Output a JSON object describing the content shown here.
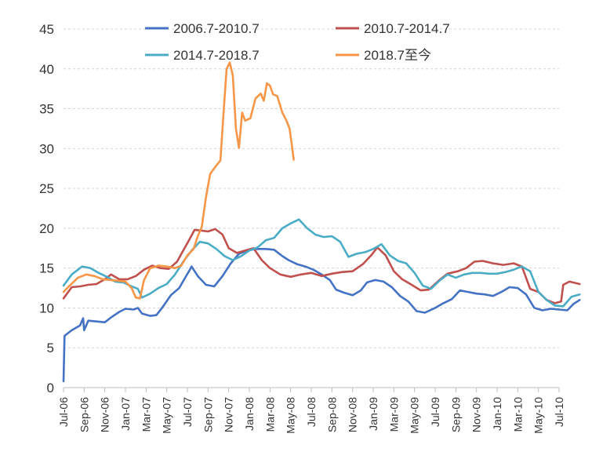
{
  "chart_data": {
    "type": "line",
    "title": "",
    "xlabel": "",
    "ylabel": "",
    "ylim": [
      0,
      45
    ],
    "yticks": [
      "0",
      "5",
      "10",
      "15",
      "20",
      "25",
      "30",
      "35",
      "40",
      "45"
    ],
    "x_ticks": [
      "Jul-06",
      "Sep-06",
      "Nov-06",
      "Jan-07",
      "Mar-07",
      "May-07",
      "Jul-07",
      "Sep-07",
      "Nov-07",
      "Jan-08",
      "Mar-08",
      "May-08",
      "Jul-08",
      "Sep-08",
      "Nov-08",
      "Jan-09",
      "Mar-09",
      "May-09",
      "Jul-09",
      "Sep-09",
      "Nov-09",
      "Jan-10",
      "Mar-10",
      "May-10",
      "Jul-10"
    ],
    "grid": "horizontal dashed",
    "legend_position": "top",
    "series": [
      {
        "name": "2006.7-2010.7",
        "color": "#4472C4",
        "points": [
          [
            0,
            0.8
          ],
          [
            0.05,
            6.5
          ],
          [
            0.4,
            7.2
          ],
          [
            0.8,
            7.8
          ],
          [
            0.95,
            8.7
          ],
          [
            1.0,
            7.2
          ],
          [
            1.2,
            8.4
          ],
          [
            1.6,
            8.3
          ],
          [
            2.0,
            8.2
          ],
          [
            2.3,
            8.8
          ],
          [
            2.7,
            9.5
          ],
          [
            3.0,
            9.9
          ],
          [
            3.4,
            9.8
          ],
          [
            3.6,
            10.0
          ],
          [
            3.8,
            9.3
          ],
          [
            4.2,
            9.0
          ],
          [
            4.5,
            9.1
          ],
          [
            4.8,
            10.1
          ],
          [
            5.2,
            11.6
          ],
          [
            5.6,
            12.5
          ],
          [
            5.85,
            13.6
          ],
          [
            6.1,
            14.7
          ],
          [
            6.2,
            15.2
          ],
          [
            6.5,
            14.0
          ],
          [
            6.9,
            12.9
          ],
          [
            7.3,
            12.7
          ],
          [
            7.7,
            14.0
          ],
          [
            8.1,
            15.6
          ],
          [
            8.5,
            16.8
          ],
          [
            8.9,
            17.2
          ],
          [
            9.3,
            17.4
          ],
          [
            9.8,
            17.4
          ],
          [
            10.2,
            17.3
          ],
          [
            10.6,
            16.5
          ],
          [
            10.9,
            16.0
          ],
          [
            11.3,
            15.5
          ],
          [
            11.7,
            15.2
          ],
          [
            12.1,
            14.8
          ],
          [
            12.5,
            14.2
          ],
          [
            12.9,
            13.5
          ],
          [
            13.2,
            12.3
          ],
          [
            13.6,
            11.9
          ],
          [
            14.0,
            11.6
          ],
          [
            14.4,
            12.2
          ],
          [
            14.7,
            13.2
          ],
          [
            15.1,
            13.5
          ],
          [
            15.5,
            13.3
          ],
          [
            15.9,
            12.6
          ],
          [
            16.3,
            11.5
          ],
          [
            16.7,
            10.8
          ],
          [
            17.1,
            9.6
          ],
          [
            17.5,
            9.4
          ],
          [
            18.0,
            10.0
          ],
          [
            18.4,
            10.6
          ],
          [
            18.8,
            11.1
          ],
          [
            19.2,
            12.2
          ],
          [
            19.6,
            12.0
          ],
          [
            20.0,
            11.8
          ],
          [
            20.4,
            11.7
          ],
          [
            20.8,
            11.5
          ],
          [
            21.2,
            12.0
          ],
          [
            21.6,
            12.6
          ],
          [
            22.0,
            12.5
          ],
          [
            22.4,
            11.7
          ],
          [
            22.8,
            10.0
          ],
          [
            23.2,
            9.7
          ],
          [
            23.6,
            9.9
          ],
          [
            24.0,
            9.8
          ],
          [
            24.4,
            9.7
          ],
          [
            24.7,
            10.5
          ],
          [
            25.0,
            11.0
          ]
        ]
      },
      {
        "name": "2010.7-2014.7",
        "color": "#C0504D",
        "points": [
          [
            0,
            11.2
          ],
          [
            0.4,
            12.6
          ],
          [
            0.8,
            12.7
          ],
          [
            1.2,
            12.9
          ],
          [
            1.6,
            13.0
          ],
          [
            2.0,
            13.6
          ],
          [
            2.3,
            14.2
          ],
          [
            2.7,
            13.6
          ],
          [
            3.1,
            13.6
          ],
          [
            3.5,
            14.0
          ],
          [
            3.9,
            14.8
          ],
          [
            4.3,
            15.3
          ],
          [
            4.7,
            15.0
          ],
          [
            5.1,
            14.9
          ],
          [
            5.5,
            15.8
          ],
          [
            5.8,
            17.2
          ],
          [
            6.1,
            18.6
          ],
          [
            6.35,
            19.8
          ],
          [
            6.7,
            19.7
          ],
          [
            7.0,
            19.6
          ],
          [
            7.35,
            19.9
          ],
          [
            7.7,
            19.2
          ],
          [
            8.0,
            17.5
          ],
          [
            8.4,
            16.9
          ],
          [
            8.8,
            17.2
          ],
          [
            9.2,
            17.5
          ],
          [
            9.6,
            16.0
          ],
          [
            10.0,
            15.0
          ],
          [
            10.5,
            14.2
          ],
          [
            11.0,
            13.9
          ],
          [
            11.5,
            14.2
          ],
          [
            12.0,
            14.4
          ],
          [
            12.5,
            14.0
          ],
          [
            13.0,
            14.3
          ],
          [
            13.5,
            14.5
          ],
          [
            14.0,
            14.6
          ],
          [
            14.5,
            15.5
          ],
          [
            14.9,
            16.6
          ],
          [
            15.2,
            17.6
          ],
          [
            15.6,
            16.6
          ],
          [
            16.0,
            14.6
          ],
          [
            16.4,
            13.6
          ],
          [
            16.8,
            13.0
          ],
          [
            17.3,
            12.2
          ],
          [
            17.7,
            12.3
          ],
          [
            18.2,
            13.5
          ],
          [
            18.6,
            14.3
          ],
          [
            19.1,
            14.6
          ],
          [
            19.5,
            15.0
          ],
          [
            19.9,
            15.8
          ],
          [
            20.3,
            15.9
          ],
          [
            20.8,
            15.6
          ],
          [
            21.3,
            15.4
          ],
          [
            21.8,
            15.6
          ],
          [
            22.2,
            15.2
          ],
          [
            22.6,
            12.4
          ],
          [
            23.0,
            12.0
          ],
          [
            23.4,
            11.0
          ],
          [
            23.8,
            10.6
          ],
          [
            24.1,
            10.8
          ],
          [
            24.2,
            12.9
          ],
          [
            24.5,
            13.3
          ],
          [
            25.0,
            13.0
          ]
        ]
      },
      {
        "name": "2014.7-2018.7",
        "color": "#4BACC6",
        "points": [
          [
            0,
            12.8
          ],
          [
            0.4,
            14.2
          ],
          [
            0.9,
            15.2
          ],
          [
            1.3,
            15.0
          ],
          [
            1.7,
            14.4
          ],
          [
            2.1,
            13.9
          ],
          [
            2.5,
            13.3
          ],
          [
            2.9,
            13.2
          ],
          [
            3.3,
            12.7
          ],
          [
            3.6,
            12.4
          ],
          [
            3.8,
            11.3
          ],
          [
            4.2,
            11.8
          ],
          [
            4.6,
            12.5
          ],
          [
            5.0,
            13.0
          ],
          [
            5.4,
            14.2
          ],
          [
            5.8,
            15.8
          ],
          [
            6.2,
            17.2
          ],
          [
            6.6,
            18.3
          ],
          [
            7.0,
            18.1
          ],
          [
            7.4,
            17.4
          ],
          [
            7.8,
            16.5
          ],
          [
            8.2,
            16.0
          ],
          [
            8.6,
            16.5
          ],
          [
            9.0,
            17.2
          ],
          [
            9.4,
            17.6
          ],
          [
            9.8,
            18.5
          ],
          [
            10.2,
            18.8
          ],
          [
            10.6,
            20.0
          ],
          [
            11.0,
            20.6
          ],
          [
            11.4,
            21.1
          ],
          [
            11.8,
            20.0
          ],
          [
            12.2,
            19.2
          ],
          [
            12.6,
            18.9
          ],
          [
            13.0,
            19.0
          ],
          [
            13.4,
            18.3
          ],
          [
            13.8,
            16.4
          ],
          [
            14.2,
            16.8
          ],
          [
            14.6,
            17.0
          ],
          [
            15.0,
            17.4
          ],
          [
            15.4,
            18.0
          ],
          [
            15.8,
            16.6
          ],
          [
            16.2,
            15.9
          ],
          [
            16.6,
            15.6
          ],
          [
            17.0,
            14.4
          ],
          [
            17.4,
            12.8
          ],
          [
            17.8,
            12.4
          ],
          [
            18.2,
            13.4
          ],
          [
            18.6,
            14.2
          ],
          [
            19.0,
            13.8
          ],
          [
            19.4,
            14.2
          ],
          [
            19.8,
            14.4
          ],
          [
            20.2,
            14.4
          ],
          [
            20.6,
            14.3
          ],
          [
            21.0,
            14.3
          ],
          [
            21.4,
            14.5
          ],
          [
            21.8,
            14.8
          ],
          [
            22.2,
            15.2
          ],
          [
            22.6,
            14.6
          ],
          [
            23.0,
            12.0
          ],
          [
            23.4,
            11.0
          ],
          [
            23.8,
            10.3
          ],
          [
            24.2,
            10.2
          ],
          [
            24.6,
            11.4
          ],
          [
            25.0,
            11.7
          ]
        ]
      },
      {
        "name": "2018.7至今",
        "color": "#F79646",
        "points": [
          [
            0,
            12.0
          ],
          [
            0.3,
            12.8
          ],
          [
            0.7,
            13.8
          ],
          [
            1.1,
            14.2
          ],
          [
            1.5,
            14.0
          ],
          [
            1.9,
            13.6
          ],
          [
            2.3,
            13.5
          ],
          [
            2.7,
            13.4
          ],
          [
            3.0,
            13.3
          ],
          [
            3.3,
            12.5
          ],
          [
            3.5,
            11.3
          ],
          [
            3.7,
            11.2
          ],
          [
            3.9,
            13.5
          ],
          [
            4.2,
            15.0
          ],
          [
            4.6,
            15.3
          ],
          [
            5.0,
            15.2
          ],
          [
            5.4,
            15.0
          ],
          [
            5.7,
            15.3
          ],
          [
            6.0,
            16.6
          ],
          [
            6.3,
            17.4
          ],
          [
            6.5,
            19.0
          ],
          [
            6.7,
            20.2
          ],
          [
            6.9,
            23.9
          ],
          [
            7.1,
            26.8
          ],
          [
            7.35,
            27.7
          ],
          [
            7.6,
            28.5
          ],
          [
            7.75,
            34.5
          ],
          [
            7.9,
            40.0
          ],
          [
            8.05,
            40.8
          ],
          [
            8.2,
            39.2
          ],
          [
            8.35,
            32.5
          ],
          [
            8.5,
            30.1
          ],
          [
            8.65,
            34.5
          ],
          [
            8.8,
            33.5
          ],
          [
            9.05,
            33.8
          ],
          [
            9.3,
            36.3
          ],
          [
            9.55,
            36.9
          ],
          [
            9.7,
            36.0
          ],
          [
            9.85,
            38.2
          ],
          [
            10.0,
            37.9
          ],
          [
            10.15,
            36.8
          ],
          [
            10.35,
            36.6
          ],
          [
            10.6,
            34.5
          ],
          [
            10.8,
            33.5
          ],
          [
            10.95,
            32.5
          ],
          [
            11.05,
            30.6
          ],
          [
            11.15,
            28.6
          ]
        ]
      }
    ]
  }
}
